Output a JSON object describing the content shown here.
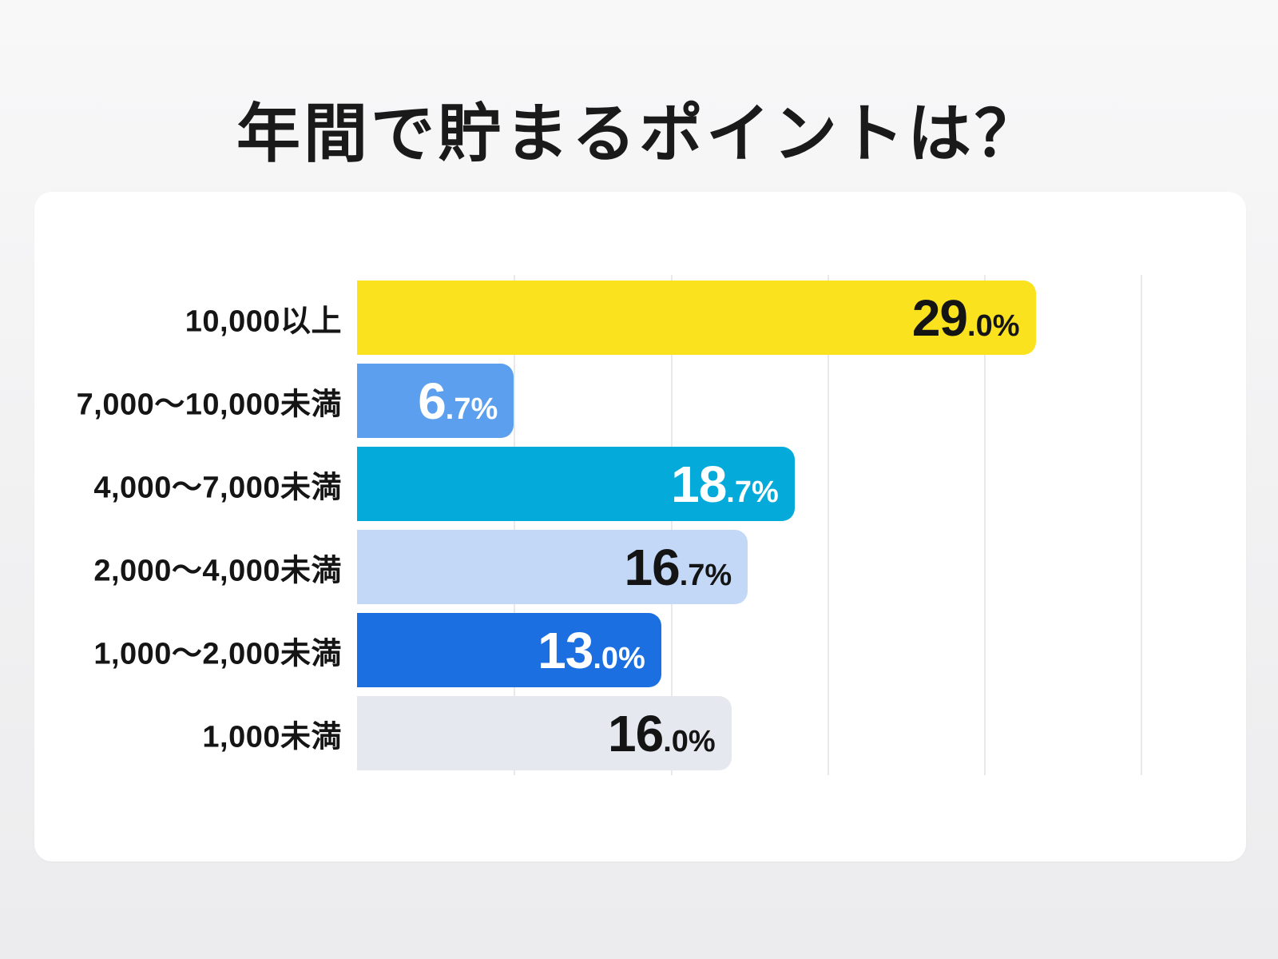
{
  "page": {
    "title": "年間で貯まるポイントは？"
  },
  "chart_data": {
    "type": "bar",
    "orientation": "horizontal",
    "title": "年間で貯まるポイントは？",
    "categories": [
      "10,000以上",
      "7,000〜10,000未満",
      "4,000〜7,000未満",
      "2,000〜4,000未満",
      "1,000〜2,000未満",
      "1,000未満"
    ],
    "values": [
      29.0,
      6.7,
      18.7,
      16.7,
      13.0,
      16.0
    ],
    "value_label_parts": [
      {
        "big": "29",
        "small": ".0%"
      },
      {
        "big": "6",
        "small": ".7%"
      },
      {
        "big": "18",
        "small": ".7%"
      },
      {
        "big": "16",
        "small": ".7%"
      },
      {
        "big": "13",
        "small": ".0%"
      },
      {
        "big": "16",
        "small": ".0%"
      }
    ],
    "bar_colors": [
      "#FBE21F",
      "#5B9FEE",
      "#04ABDA",
      "#C3D8F7",
      "#1B6FE0",
      "#E5E8EE"
    ],
    "value_text_colors": [
      "#141414",
      "#FFFFFF",
      "#FFFFFF",
      "#141414",
      "#FFFFFF",
      "#141414"
    ],
    "xlabel": "",
    "ylabel": "",
    "axis": {
      "xmin": 0,
      "xmax": 36.8,
      "gridline_step": 6.7,
      "gridline_count": 5,
      "grid": true,
      "tick_labels_shown": false
    },
    "legend": "none"
  },
  "colors": {
    "page_bg": "#F2F2F3",
    "card_bg": "#FFFFFF",
    "gridline": "#E9E9EA",
    "title_text": "#1A1A1A"
  }
}
